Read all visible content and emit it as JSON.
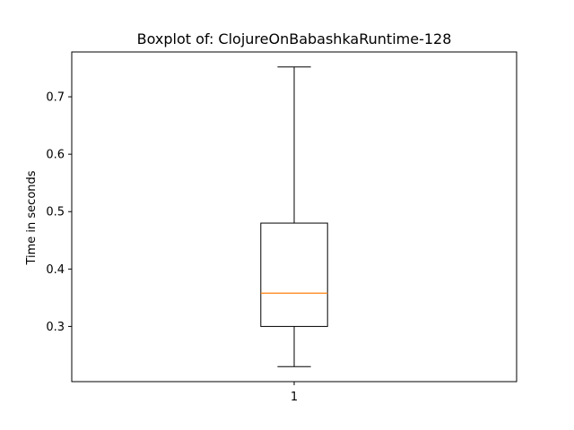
{
  "chart_data": {
    "type": "boxplot",
    "title": "Boxplot of: ClojureOnBabashkaRuntime-128",
    "xlabel": "",
    "ylabel": "Time in seconds",
    "categories": [
      "1"
    ],
    "boxes": [
      {
        "category": "1",
        "whisker_low": 0.23,
        "q1": 0.3,
        "median": 0.358,
        "q3": 0.48,
        "whisker_high": 0.752
      }
    ],
    "yticks": [
      0.3,
      0.4,
      0.5,
      0.6,
      0.7
    ],
    "ytick_labels": [
      "0.3",
      "0.4",
      "0.5",
      "0.6",
      "0.7"
    ],
    "ylim": [
      0.2039,
      0.7781
    ],
    "grid": false,
    "colors": {
      "box": "#000000",
      "median": "#ff7f0e",
      "background": "#ffffff"
    }
  }
}
